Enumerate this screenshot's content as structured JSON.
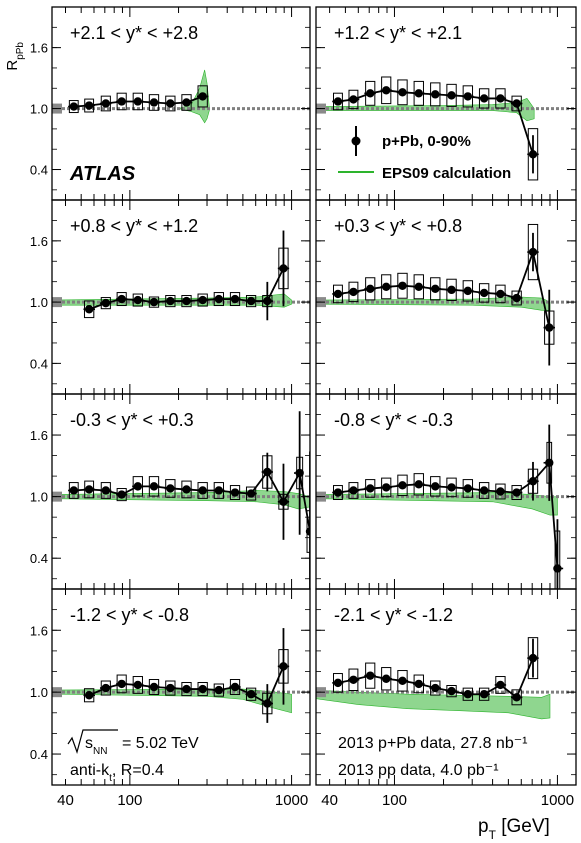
{
  "figure": {
    "y_title": "R_{pPb}",
    "x_title": "p_T [GeV]",
    "atlas": "ATLAS",
    "legend": {
      "data": "p+Pb, 0-90%",
      "calc": "EPS09 calculation"
    },
    "ann_sqrt_energy": "= 5.02 TeV",
    "ann_sqrt_sub": "NN",
    "ann_algo_prefix": "anti-k",
    "ann_algo_sub": "t",
    "ann_algo_suffix": ", R=0.4",
    "ann_pPb": "2013 p+Pb data, 27.8 nb⁻¹",
    "ann_pp": "2013 pp data, 4.0 pb⁻¹",
    "colors": {
      "band": "#2db42d",
      "band_fill": "#8fd68f",
      "ref_line": "#808080",
      "marker": "#000000"
    }
  },
  "chart_data": {
    "type": "scatter",
    "x_scale": "log",
    "xlim": [
      33,
      1300
    ],
    "ylim": [
      0.1,
      2.0
    ],
    "y_ticks": [
      0.4,
      1.0,
      1.6
    ],
    "y_tick_labels": [
      "0.4",
      "1.0",
      "1.6"
    ],
    "x_tick_labels": [
      "40",
      "100",
      "1000"
    ],
    "reference_line": 1.0,
    "panels": [
      {
        "label": "+2.1 < y* < +2.8",
        "points": [
          [
            45,
            1.02
          ],
          [
            56,
            1.03
          ],
          [
            71,
            1.05
          ],
          [
            89,
            1.07
          ],
          [
            112,
            1.07
          ],
          [
            141,
            1.06
          ],
          [
            178,
            1.05
          ],
          [
            224,
            1.06
          ],
          [
            282,
            1.12
          ]
        ],
        "band": [
          [
            200,
            1.0,
            1.0
          ],
          [
            240,
            0.97,
            1.04
          ],
          [
            270,
            0.94,
            1.2
          ],
          [
            290,
            0.86,
            1.38
          ],
          [
            300,
            0.9,
            1.25
          ],
          [
            310,
            0.98,
            1.02
          ]
        ]
      },
      {
        "label": "+1.2 < y* < +2.1",
        "points": [
          [
            45,
            1.07
          ],
          [
            56,
            1.09
          ],
          [
            71,
            1.15
          ],
          [
            89,
            1.18
          ],
          [
            112,
            1.16
          ],
          [
            141,
            1.15
          ],
          [
            178,
            1.14
          ],
          [
            224,
            1.13
          ],
          [
            282,
            1.12
          ],
          [
            355,
            1.1
          ],
          [
            447,
            1.1
          ],
          [
            562,
            1.05
          ],
          [
            708,
            0.55
          ]
        ],
        "band": [
          [
            32,
            0.98,
            1.02
          ],
          [
            200,
            0.98,
            1.03
          ],
          [
            400,
            0.98,
            1.04
          ],
          [
            560,
            0.96,
            1.06
          ],
          [
            650,
            0.88,
            1.1
          ],
          [
            720,
            0.9,
            1.0
          ]
        ]
      },
      {
        "label": "+0.8 < y* < +1.2",
        "points": [
          [
            56,
            0.93
          ],
          [
            71,
            0.99
          ],
          [
            89,
            1.03
          ],
          [
            112,
            1.02
          ],
          [
            141,
            1.0
          ],
          [
            178,
            1.01
          ],
          [
            224,
            1.01
          ],
          [
            282,
            1.02
          ],
          [
            355,
            1.03
          ],
          [
            447,
            1.03
          ],
          [
            562,
            1.01
          ],
          [
            708,
            1.01
          ],
          [
            891,
            1.33
          ]
        ],
        "band": [
          [
            32,
            0.97,
            1.02
          ],
          [
            300,
            0.97,
            1.04
          ],
          [
            600,
            0.97,
            1.05
          ],
          [
            900,
            0.95,
            1.08
          ],
          [
            1000,
            0.98,
            1.02
          ]
        ]
      },
      {
        "label": "+0.3 < y* < +0.8",
        "points": [
          [
            45,
            1.08
          ],
          [
            56,
            1.1
          ],
          [
            71,
            1.13
          ],
          [
            89,
            1.15
          ],
          [
            112,
            1.16
          ],
          [
            141,
            1.15
          ],
          [
            178,
            1.13
          ],
          [
            224,
            1.12
          ],
          [
            282,
            1.11
          ],
          [
            355,
            1.09
          ],
          [
            447,
            1.08
          ],
          [
            562,
            1.04
          ],
          [
            708,
            1.49
          ],
          [
            891,
            0.75
          ]
        ],
        "band": [
          [
            32,
            0.98,
            1.02
          ],
          [
            300,
            0.97,
            1.03
          ],
          [
            600,
            0.95,
            1.05
          ],
          [
            800,
            0.92,
            1.04
          ],
          [
            900,
            0.92,
            1.0
          ]
        ]
      },
      {
        "label": "-0.3 < y* < +0.3",
        "points": [
          [
            45,
            1.06
          ],
          [
            56,
            1.07
          ],
          [
            71,
            1.06
          ],
          [
            89,
            1.02
          ],
          [
            112,
            1.1
          ],
          [
            141,
            1.1
          ],
          [
            178,
            1.08
          ],
          [
            224,
            1.07
          ],
          [
            282,
            1.06
          ],
          [
            355,
            1.06
          ],
          [
            447,
            1.04
          ],
          [
            562,
            1.03
          ],
          [
            708,
            1.24
          ],
          [
            891,
            0.95
          ],
          [
            1122,
            1.23
          ],
          [
            1300,
            0.66
          ]
        ],
        "band": [
          [
            32,
            0.98,
            1.02
          ],
          [
            300,
            0.96,
            1.04
          ],
          [
            600,
            0.95,
            1.06
          ],
          [
            900,
            0.92,
            1.05
          ],
          [
            1100,
            0.88,
            1.03
          ],
          [
            1300,
            0.9,
            1.0
          ]
        ]
      },
      {
        "label": "-0.8 < y* < -0.3",
        "points": [
          [
            45,
            1.04
          ],
          [
            56,
            1.06
          ],
          [
            71,
            1.08
          ],
          [
            89,
            1.09
          ],
          [
            112,
            1.11
          ],
          [
            141,
            1.12
          ],
          [
            178,
            1.1
          ],
          [
            224,
            1.09
          ],
          [
            282,
            1.08
          ],
          [
            355,
            1.06
          ],
          [
            447,
            1.05
          ],
          [
            562,
            1.04
          ],
          [
            708,
            1.15
          ],
          [
            891,
            1.33
          ],
          [
            1000,
            0.3
          ]
        ],
        "band": [
          [
            32,
            0.98,
            1.02
          ],
          [
            400,
            0.95,
            1.04
          ],
          [
            700,
            0.88,
            1.02
          ],
          [
            900,
            0.82,
            1.0
          ],
          [
            1000,
            0.82,
            1.0
          ]
        ]
      },
      {
        "label": "-1.2 < y* < -0.8",
        "points": [
          [
            56,
            0.97
          ],
          [
            71,
            1.04
          ],
          [
            89,
            1.08
          ],
          [
            112,
            1.07
          ],
          [
            141,
            1.05
          ],
          [
            178,
            1.04
          ],
          [
            224,
            1.03
          ],
          [
            282,
            1.03
          ],
          [
            355,
            1.02
          ],
          [
            447,
            1.05
          ],
          [
            562,
            0.98
          ],
          [
            708,
            0.89
          ],
          [
            891,
            1.25
          ]
        ],
        "band": [
          [
            32,
            0.98,
            1.02
          ],
          [
            300,
            0.96,
            1.03
          ],
          [
            500,
            0.93,
            1.03
          ],
          [
            800,
            0.84,
            1.0
          ],
          [
            1000,
            0.8,
            0.98
          ]
        ]
      },
      {
        "label": "-2.1 < y* < -1.2",
        "points": [
          [
            45,
            1.09
          ],
          [
            56,
            1.12
          ],
          [
            71,
            1.16
          ],
          [
            89,
            1.13
          ],
          [
            112,
            1.11
          ],
          [
            141,
            1.08
          ],
          [
            178,
            1.04
          ],
          [
            224,
            1.01
          ],
          [
            282,
            0.98
          ],
          [
            355,
            0.98
          ],
          [
            447,
            1.07
          ],
          [
            562,
            0.95
          ],
          [
            708,
            1.33
          ]
        ],
        "band": [
          [
            32,
            0.94,
            1.02
          ],
          [
            60,
            0.88,
            1.0
          ],
          [
            120,
            0.84,
            0.98
          ],
          [
            250,
            0.82,
            0.97
          ],
          [
            500,
            0.8,
            0.96
          ],
          [
            800,
            0.74,
            0.95
          ],
          [
            900,
            0.75,
            0.98
          ]
        ]
      }
    ]
  }
}
